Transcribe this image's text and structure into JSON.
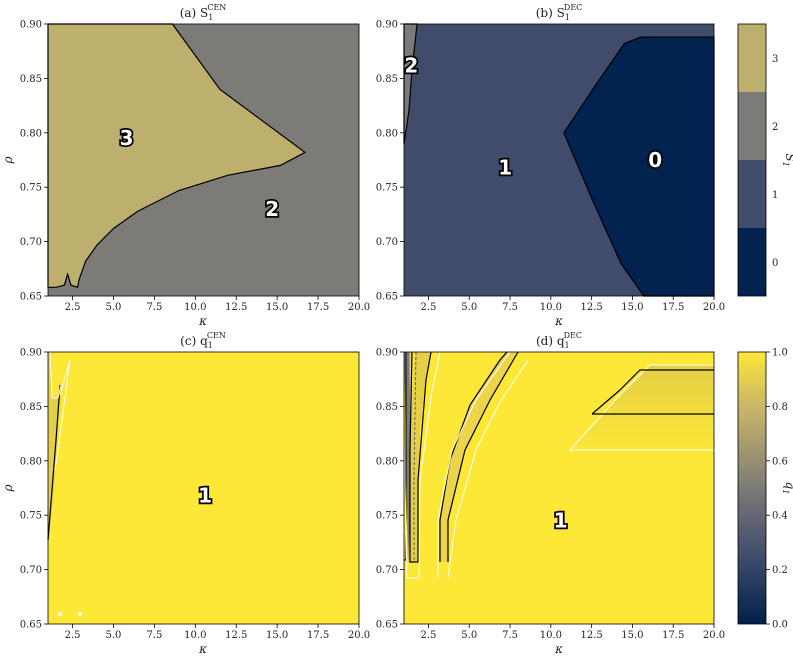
{
  "chart_data": [
    {
      "id": "a",
      "type": "heatmap",
      "title": "(a) S",
      "title_sub": "1",
      "title_sup": "CEN",
      "xlabel": "κ",
      "ylabel": "ρ",
      "xlim": [
        1,
        20
      ],
      "ylim": [
        0.65,
        0.9
      ],
      "xticks": [
        "2.5",
        "5.0",
        "7.5",
        "10.0",
        "12.5",
        "15.0",
        "17.5",
        "20.0"
      ],
      "yticks": [
        "0.65",
        "0.70",
        "0.75",
        "0.80",
        "0.85",
        "0.90"
      ],
      "regions": [
        {
          "label": "3",
          "color": "#bdaf6d",
          "label_at": [
            5.8,
            0.795
          ],
          "polygon": [
            [
              1,
              0.9
            ],
            [
              8.6,
              0.9
            ],
            [
              11.5,
              0.84
            ],
            [
              16.7,
              0.782
            ],
            [
              15.2,
              0.77
            ],
            [
              12.0,
              0.761
            ],
            [
              9.0,
              0.747
            ],
            [
              6.5,
              0.728
            ],
            [
              5.0,
              0.712
            ],
            [
              4.0,
              0.697
            ],
            [
              3.3,
              0.682
            ],
            [
              2.9,
              0.665
            ],
            [
              2.8,
              0.658
            ],
            [
              2.4,
              0.66
            ],
            [
              2.2,
              0.67
            ],
            [
              2.0,
              0.66
            ],
            [
              1.5,
              0.658
            ],
            [
              1,
              0.658
            ]
          ]
        },
        {
          "label": "2",
          "color": "#7d7b77",
          "label_at": [
            14.7,
            0.73
          ],
          "fill": "background"
        }
      ]
    },
    {
      "id": "b",
      "type": "heatmap",
      "title": "(b) S",
      "title_sub": "1",
      "title_sup": "DEC",
      "xlabel": "κ",
      "ylabel": "",
      "xlim": [
        1,
        20
      ],
      "ylim": [
        0.65,
        0.9
      ],
      "xticks": [
        "2.5",
        "5.0",
        "7.5",
        "10.0",
        "12.5",
        "15.0",
        "17.5",
        "20.0"
      ],
      "yticks": [
        "0.65",
        "0.70",
        "0.75",
        "0.80",
        "0.85",
        "0.90"
      ],
      "regions": [
        {
          "label": "1",
          "color": "#414b6c",
          "label_at": [
            7.2,
            0.768
          ],
          "fill": "background"
        },
        {
          "label": "0",
          "color": "#022250",
          "label_at": [
            16.4,
            0.775
          ],
          "polygon": [
            [
              15.5,
              0.888
            ],
            [
              20,
              0.888
            ],
            [
              20,
              0.65
            ],
            [
              15.7,
              0.65
            ],
            [
              14.3,
              0.68
            ],
            [
              12.5,
              0.74
            ],
            [
              10.8,
              0.8
            ],
            [
              12.8,
              0.845
            ],
            [
              14.5,
              0.882
            ]
          ]
        },
        {
          "label": "2",
          "color": "#7d7b77",
          "label_at": [
            1.45,
            0.862
          ],
          "polygon": [
            [
              1.0,
              0.79
            ],
            [
              1.0,
              0.9
            ],
            [
              1.8,
              0.9
            ],
            [
              1.5,
              0.86
            ],
            [
              1.3,
              0.82
            ]
          ]
        }
      ]
    },
    {
      "id": "c",
      "type": "heatmap",
      "title": "(c) q",
      "title_sub": "1",
      "title_sup": "CEN",
      "xlabel": "κ",
      "ylabel": "ρ",
      "xlim": [
        1,
        20
      ],
      "ylim": [
        0.65,
        0.9
      ],
      "xticks": [
        "2.5",
        "5.0",
        "7.5",
        "10.0",
        "12.5",
        "15.0",
        "17.5",
        "20.0"
      ],
      "yticks": [
        "0.65",
        "0.70",
        "0.75",
        "0.80",
        "0.85",
        "0.90"
      ],
      "regions": [
        {
          "label": "1",
          "color": "#fde737",
          "label_at": [
            10.6,
            0.768
          ],
          "fill": "background"
        }
      ]
    },
    {
      "id": "d",
      "type": "heatmap",
      "title": "(d) q",
      "title_sub": "1",
      "title_sup": "DEC",
      "xlabel": "κ",
      "ylabel": "",
      "xlim": [
        1,
        20
      ],
      "ylim": [
        0.65,
        0.9
      ],
      "xticks": [
        "2.5",
        "5.0",
        "7.5",
        "10.0",
        "12.5",
        "15.0",
        "17.5",
        "20.0"
      ],
      "yticks": [
        "0.65",
        "0.70",
        "0.75",
        "0.80",
        "0.85",
        "0.90"
      ],
      "regions": [
        {
          "label": "1",
          "color": "#fde737",
          "label_at": [
            10.6,
            0.745
          ],
          "fill": "background"
        }
      ]
    }
  ],
  "colorbars": {
    "S1": {
      "label": "S",
      "label_sub": "1",
      "levels": [
        {
          "value": "3",
          "color": "#bdaf6d"
        },
        {
          "value": "2",
          "color": "#7d7b77"
        },
        {
          "value": "1",
          "color": "#414b6c"
        },
        {
          "value": "0",
          "color": "#022250"
        }
      ]
    },
    "q1": {
      "label": "q",
      "label_sub": "1",
      "ticks": [
        "1.0",
        "0.8",
        "0.6",
        "0.4",
        "0.2",
        "0.0"
      ],
      "colors": [
        "#fde737",
        "#c9b767",
        "#7d7b77",
        "#414b6c",
        "#00204c"
      ]
    }
  }
}
